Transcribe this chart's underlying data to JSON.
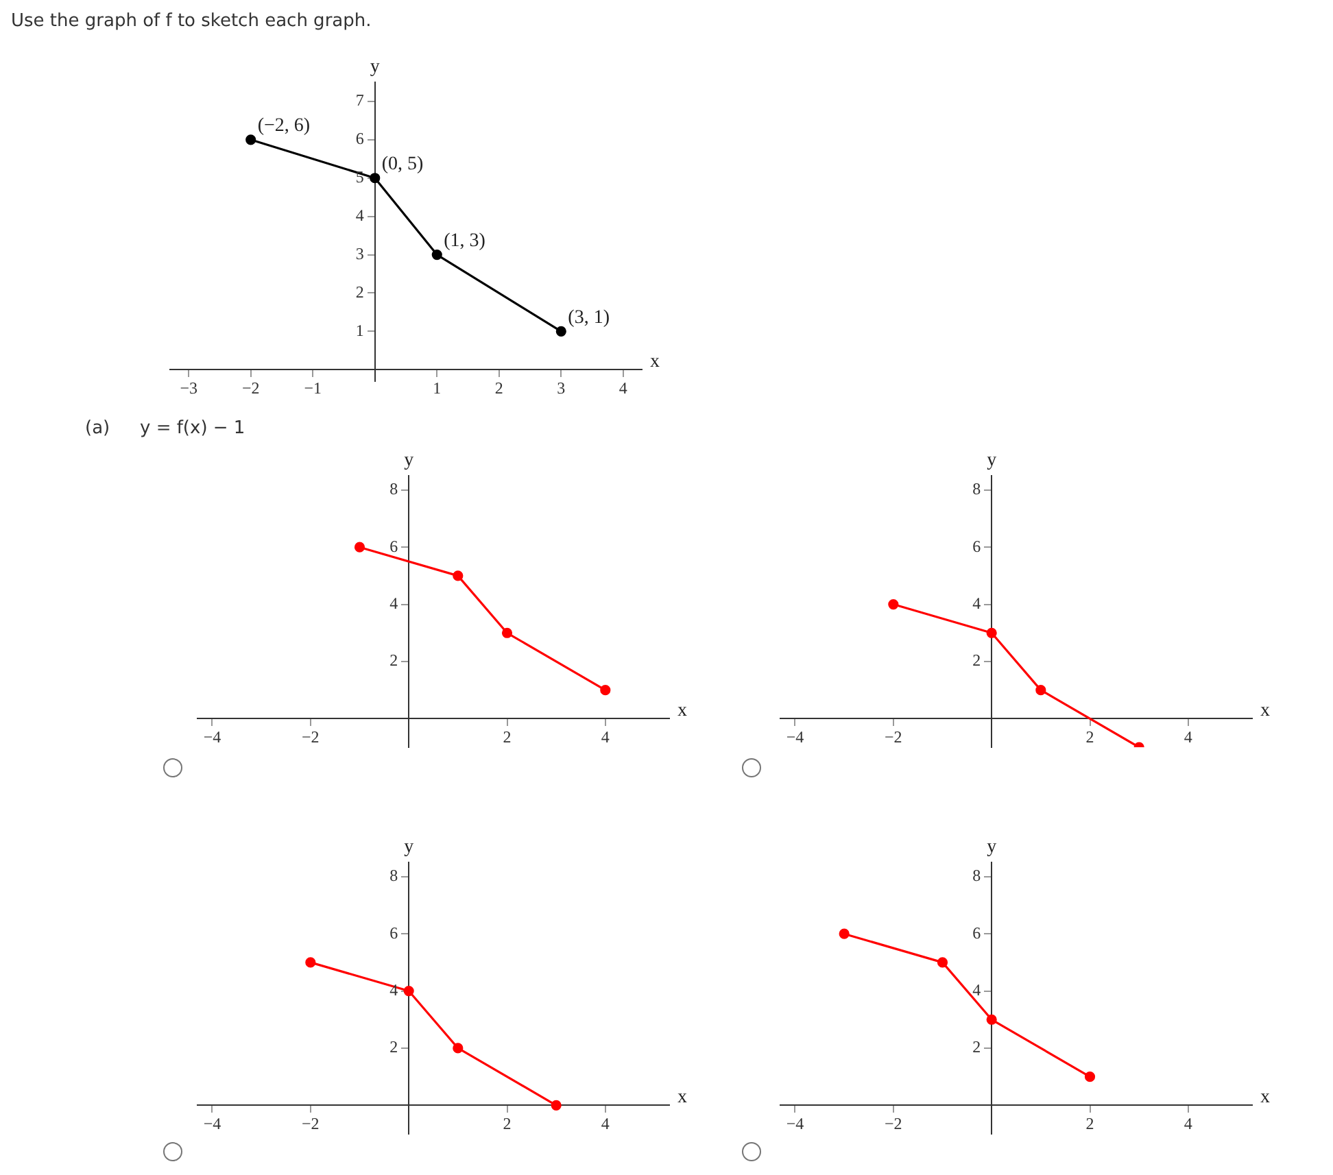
{
  "chart_data": [
    {
      "type": "line",
      "title": "Use the graph of f to sketch each graph.",
      "xlabel": "x",
      "ylabel": "y",
      "x": [
        -2,
        0,
        1,
        3
      ],
      "series": [
        {
          "color": "#000000",
          "values": [
            6,
            5,
            3,
            1
          ]
        }
      ],
      "xlim": [
        -3.3,
        4.3
      ],
      "ylim": [
        -0.3,
        7.5
      ],
      "xticks": [
        {
          "value": -3,
          "label": "−3"
        },
        {
          "value": -2,
          "label": "−2"
        },
        {
          "value": -1,
          "label": "−1"
        },
        1,
        2,
        3,
        4
      ],
      "yticks": [
        1,
        2,
        3,
        4,
        5,
        6,
        7
      ],
      "grid": false,
      "legend": false,
      "marker": "circle",
      "line_style": "solid",
      "annotations": [
        {
          "text": "(−2, 6)",
          "x": -2,
          "y": 6
        },
        {
          "text": "(0, 5)",
          "x": 0,
          "y": 5
        },
        {
          "text": "(1, 3)",
          "x": 1,
          "y": 3
        },
        {
          "text": "(3, 1)",
          "x": 3,
          "y": 1
        }
      ]
    },
    {
      "type": "line",
      "title": "(a)",
      "subtitle": "y = f(x) − 1",
      "xlabel": "x",
      "ylabel": "y",
      "x": [
        -1,
        1,
        2,
        4
      ],
      "series": [
        {
          "color": "#ff0000",
          "values": [
            6,
            5,
            3,
            1
          ]
        }
      ],
      "xlim": [
        -4.3,
        5.3
      ],
      "ylim": [
        -1,
        8.5
      ],
      "xticks": [
        {
          "value": -4,
          "label": "−4"
        },
        {
          "value": -2,
          "label": "−2"
        },
        2,
        4
      ],
      "yticks": [
        2,
        4,
        6,
        8
      ],
      "grid": false,
      "legend": false,
      "marker": "circle",
      "line_style": "solid"
    },
    {
      "type": "line",
      "xlabel": "x",
      "ylabel": "y",
      "x": [
        -2,
        0,
        1,
        3
      ],
      "series": [
        {
          "color": "#ff0000",
          "values": [
            4,
            3,
            1,
            -1
          ]
        }
      ],
      "xlim": [
        -4.3,
        5.3
      ],
      "ylim": [
        -1,
        8.5
      ],
      "xticks": [
        {
          "value": -4,
          "label": "−4"
        },
        {
          "value": -2,
          "label": "−2"
        },
        2,
        4
      ],
      "yticks": [
        2,
        4,
        6,
        8
      ],
      "grid": false,
      "legend": false,
      "marker": "circle",
      "line_style": "solid"
    },
    {
      "type": "line",
      "xlabel": "x",
      "ylabel": "y",
      "x": [
        -2,
        0,
        1,
        3
      ],
      "series": [
        {
          "color": "#ff0000",
          "values": [
            5,
            4,
            2,
            0
          ]
        }
      ],
      "xlim": [
        -4.3,
        5.3
      ],
      "ylim": [
        -1,
        8.5
      ],
      "xticks": [
        {
          "value": -4,
          "label": "−4"
        },
        {
          "value": -2,
          "label": "−2"
        },
        2,
        4
      ],
      "yticks": [
        2,
        4,
        6,
        8
      ],
      "grid": false,
      "legend": false,
      "marker": "circle",
      "line_style": "solid"
    },
    {
      "type": "line",
      "xlabel": "x",
      "ylabel": "y",
      "x": [
        -3,
        -1,
        0,
        2
      ],
      "series": [
        {
          "color": "#ff0000",
          "values": [
            6,
            5,
            3,
            1
          ]
        }
      ],
      "xlim": [
        -4.3,
        5.3
      ],
      "ylim": [
        -1,
        8.5
      ],
      "xticks": [
        {
          "value": -4,
          "label": "−4"
        },
        {
          "value": -2,
          "label": "−2"
        },
        2,
        4
      ],
      "yticks": [
        2,
        4,
        6,
        8
      ],
      "grid": false,
      "legend": false,
      "marker": "circle",
      "line_style": "solid"
    }
  ]
}
